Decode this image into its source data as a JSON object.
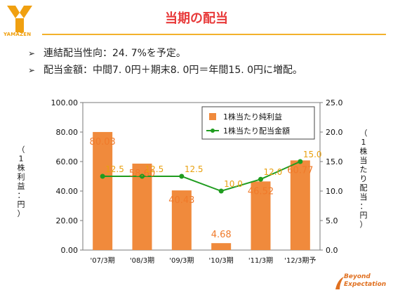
{
  "header": {
    "title": "当期の配当",
    "logo_text": "YAMAZEN",
    "brand_line1": "Beyond",
    "brand_line2": "Expectation"
  },
  "bullets": [
    {
      "marker": "➢",
      "text": "連結配当性向：24. 7%を予定。"
    },
    {
      "marker": "➢",
      "text": "配当金額：中間7. 0円＋期末8. 0円＝年間15. 0円に増配。"
    }
  ],
  "colors": {
    "accent": "#e83a3a",
    "rule": "#f3b12b",
    "bar": "#f08a3c",
    "bar_label": "#f07a2a",
    "line": "#1f9c1f",
    "line_label": "#e8a00e"
  },
  "chart_data": {
    "type": "bar",
    "categories": [
      "'07/3期",
      "'08/3期",
      "'09/3期",
      "'10/3期",
      "'11/3期",
      "'12/3期予"
    ],
    "series": [
      {
        "name": "1株当たり純利益",
        "type": "bar",
        "axis": "left",
        "values": [
          80.03,
          58.6,
          40.43,
          4.68,
          46.52,
          60.77
        ],
        "labels": [
          "80.03",
          "58.60",
          "40.43",
          "4.68",
          "46.52",
          "60.77"
        ]
      },
      {
        "name": "1株当たり配当金額",
        "type": "line",
        "axis": "right",
        "values": [
          12.5,
          12.5,
          12.5,
          10.0,
          12.0,
          15.0
        ],
        "labels": [
          "12.5",
          "12.5",
          "12.5",
          "10.0",
          "12.0",
          "15.0"
        ]
      }
    ],
    "y_left": {
      "label": "（1株利益：円）",
      "min": 0,
      "max": 100,
      "ticks": [
        "0.00",
        "20.00",
        "40.00",
        "60.00",
        "80.00",
        "100.00"
      ]
    },
    "y_right": {
      "label": "（1株当たり配当：円）",
      "min": 0,
      "max": 25,
      "ticks": [
        "0.0",
        "5.0",
        "10.0",
        "15.0",
        "20.0",
        "25.0"
      ]
    },
    "grid": false,
    "legend": "top-right"
  }
}
